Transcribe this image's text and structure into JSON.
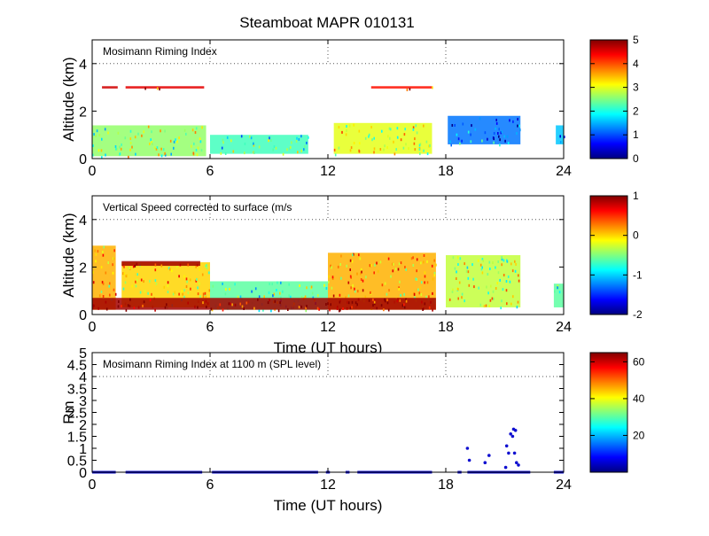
{
  "chart_data": {
    "type": "heatmap",
    "title": "Steamboat MAPR 010131",
    "panels": [
      {
        "type": "heatmap",
        "annotation": "Mosimann Riming Index",
        "ylabel": "Altitude (km)",
        "xlabel": "",
        "xlim": [
          0,
          24
        ],
        "ylim": [
          0,
          5
        ],
        "xticks": [
          "0",
          "6",
          "12",
          "18",
          "24"
        ],
        "yticks": [
          "0",
          "2",
          "4"
        ],
        "reference_lines": {
          "y": 4,
          "x": [
            6,
            12,
            18
          ]
        },
        "colorbar": {
          "range": [
            0,
            5
          ],
          "ticks": [
            "0",
            "1",
            "2",
            "3",
            "4",
            "5"
          ]
        },
        "blocks": [
          {
            "t0": 0.0,
            "t1": 5.8,
            "z0": 0.1,
            "z1": 1.4,
            "value": 2.6
          },
          {
            "t0": 0.5,
            "t1": 1.3,
            "z0": 2.95,
            "z1": 3.05,
            "value": 4.6
          },
          {
            "t0": 1.7,
            "t1": 5.7,
            "z0": 2.95,
            "z1": 3.05,
            "value": 4.5
          },
          {
            "t0": 6.0,
            "t1": 11.0,
            "z0": 0.2,
            "z1": 1.0,
            "value": 2.2
          },
          {
            "t0": 12.3,
            "t1": 17.3,
            "z0": 0.2,
            "z1": 1.5,
            "value": 3.0
          },
          {
            "t0": 14.2,
            "t1": 17.3,
            "z0": 2.95,
            "z1": 3.05,
            "value": 4.3
          },
          {
            "t0": 18.1,
            "t1": 21.8,
            "z0": 0.6,
            "z1": 1.8,
            "value": 1.2
          },
          {
            "t0": 23.6,
            "t1": 24.0,
            "z0": 0.6,
            "z1": 1.4,
            "value": 1.6
          }
        ]
      },
      {
        "type": "heatmap",
        "annotation": "Vertical Speed corrected to surface (m/s",
        "ylabel": "Altitude (km)",
        "xlabel": "Time (UT hours)",
        "xlim": [
          0,
          24
        ],
        "ylim": [
          0,
          5
        ],
        "xticks": [
          "0",
          "6",
          "12",
          "18",
          "24"
        ],
        "yticks": [
          "0",
          "2",
          "4"
        ],
        "reference_lines": {
          "y": 4,
          "x": [
            6,
            12,
            18
          ]
        },
        "colorbar": {
          "range": [
            -2,
            1
          ],
          "ticks": [
            "-2",
            "-1",
            "0",
            "1"
          ]
        },
        "blocks": [
          {
            "t0": 0.0,
            "t1": 1.2,
            "z0": 0.2,
            "z1": 2.9,
            "value": 0.1
          },
          {
            "t0": 1.5,
            "t1": 6.0,
            "z0": 0.3,
            "z1": 2.2,
            "value": 0.0
          },
          {
            "t0": 6.0,
            "t1": 12.0,
            "z0": 0.2,
            "z1": 1.4,
            "value": -0.6
          },
          {
            "t0": 12.0,
            "t1": 17.5,
            "z0": 0.2,
            "z1": 2.6,
            "value": 0.1
          },
          {
            "t0": 0.0,
            "t1": 17.5,
            "z0": 0.2,
            "z1": 0.7,
            "value": 0.9
          },
          {
            "t0": 1.5,
            "t1": 5.5,
            "z0": 2.05,
            "z1": 2.25,
            "value": 0.9
          },
          {
            "t0": 18.0,
            "t1": 21.8,
            "z0": 0.3,
            "z1": 2.5,
            "value": -0.3
          },
          {
            "t0": 23.5,
            "t1": 24.0,
            "z0": 0.3,
            "z1": 1.3,
            "value": -0.6
          }
        ]
      },
      {
        "type": "scatter",
        "annotation": "Mosimann Riming Index at 1100 m (SPL level)",
        "ylabel": "Rm",
        "xlabel": "Time (UT hours)",
        "xlim": [
          0,
          24
        ],
        "ylim": [
          0,
          5
        ],
        "xticks": [
          "0",
          "6",
          "12",
          "18",
          "24"
        ],
        "yticks": [
          "0",
          "0.5",
          "1",
          "1.5",
          "2",
          "2.5",
          "3",
          "3.5",
          "4",
          "4.5",
          "5"
        ],
        "reference_lines": {
          "y": 4,
          "x": [
            6,
            12,
            18
          ]
        },
        "colorbar": {
          "range": [
            0,
            65
          ],
          "ticks": [
            "20",
            "40",
            "60"
          ]
        },
        "zero_segments": [
          [
            0.0,
            1.2
          ],
          [
            1.7,
            5.6
          ],
          [
            6.1,
            11.5
          ],
          [
            11.9,
            12.1
          ],
          [
            12.9,
            13.1
          ],
          [
            13.5,
            17.3
          ],
          [
            18.6,
            18.8
          ],
          [
            19.1,
            22.3
          ],
          [
            23.5,
            24.0
          ]
        ],
        "points": [
          {
            "t": 19.1,
            "v": 1.0
          },
          {
            "t": 19.2,
            "v": 0.5
          },
          {
            "t": 20.0,
            "v": 0.4
          },
          {
            "t": 20.2,
            "v": 0.7
          },
          {
            "t": 21.1,
            "v": 1.1
          },
          {
            "t": 21.2,
            "v": 0.8
          },
          {
            "t": 21.3,
            "v": 1.6
          },
          {
            "t": 21.45,
            "v": 1.8
          },
          {
            "t": 21.55,
            "v": 1.75
          },
          {
            "t": 21.4,
            "v": 1.5
          },
          {
            "t": 21.5,
            "v": 0.8
          },
          {
            "t": 21.6,
            "v": 0.4
          },
          {
            "t": 21.7,
            "v": 0.3
          },
          {
            "t": 21.05,
            "v": 0.2
          }
        ]
      }
    ]
  }
}
